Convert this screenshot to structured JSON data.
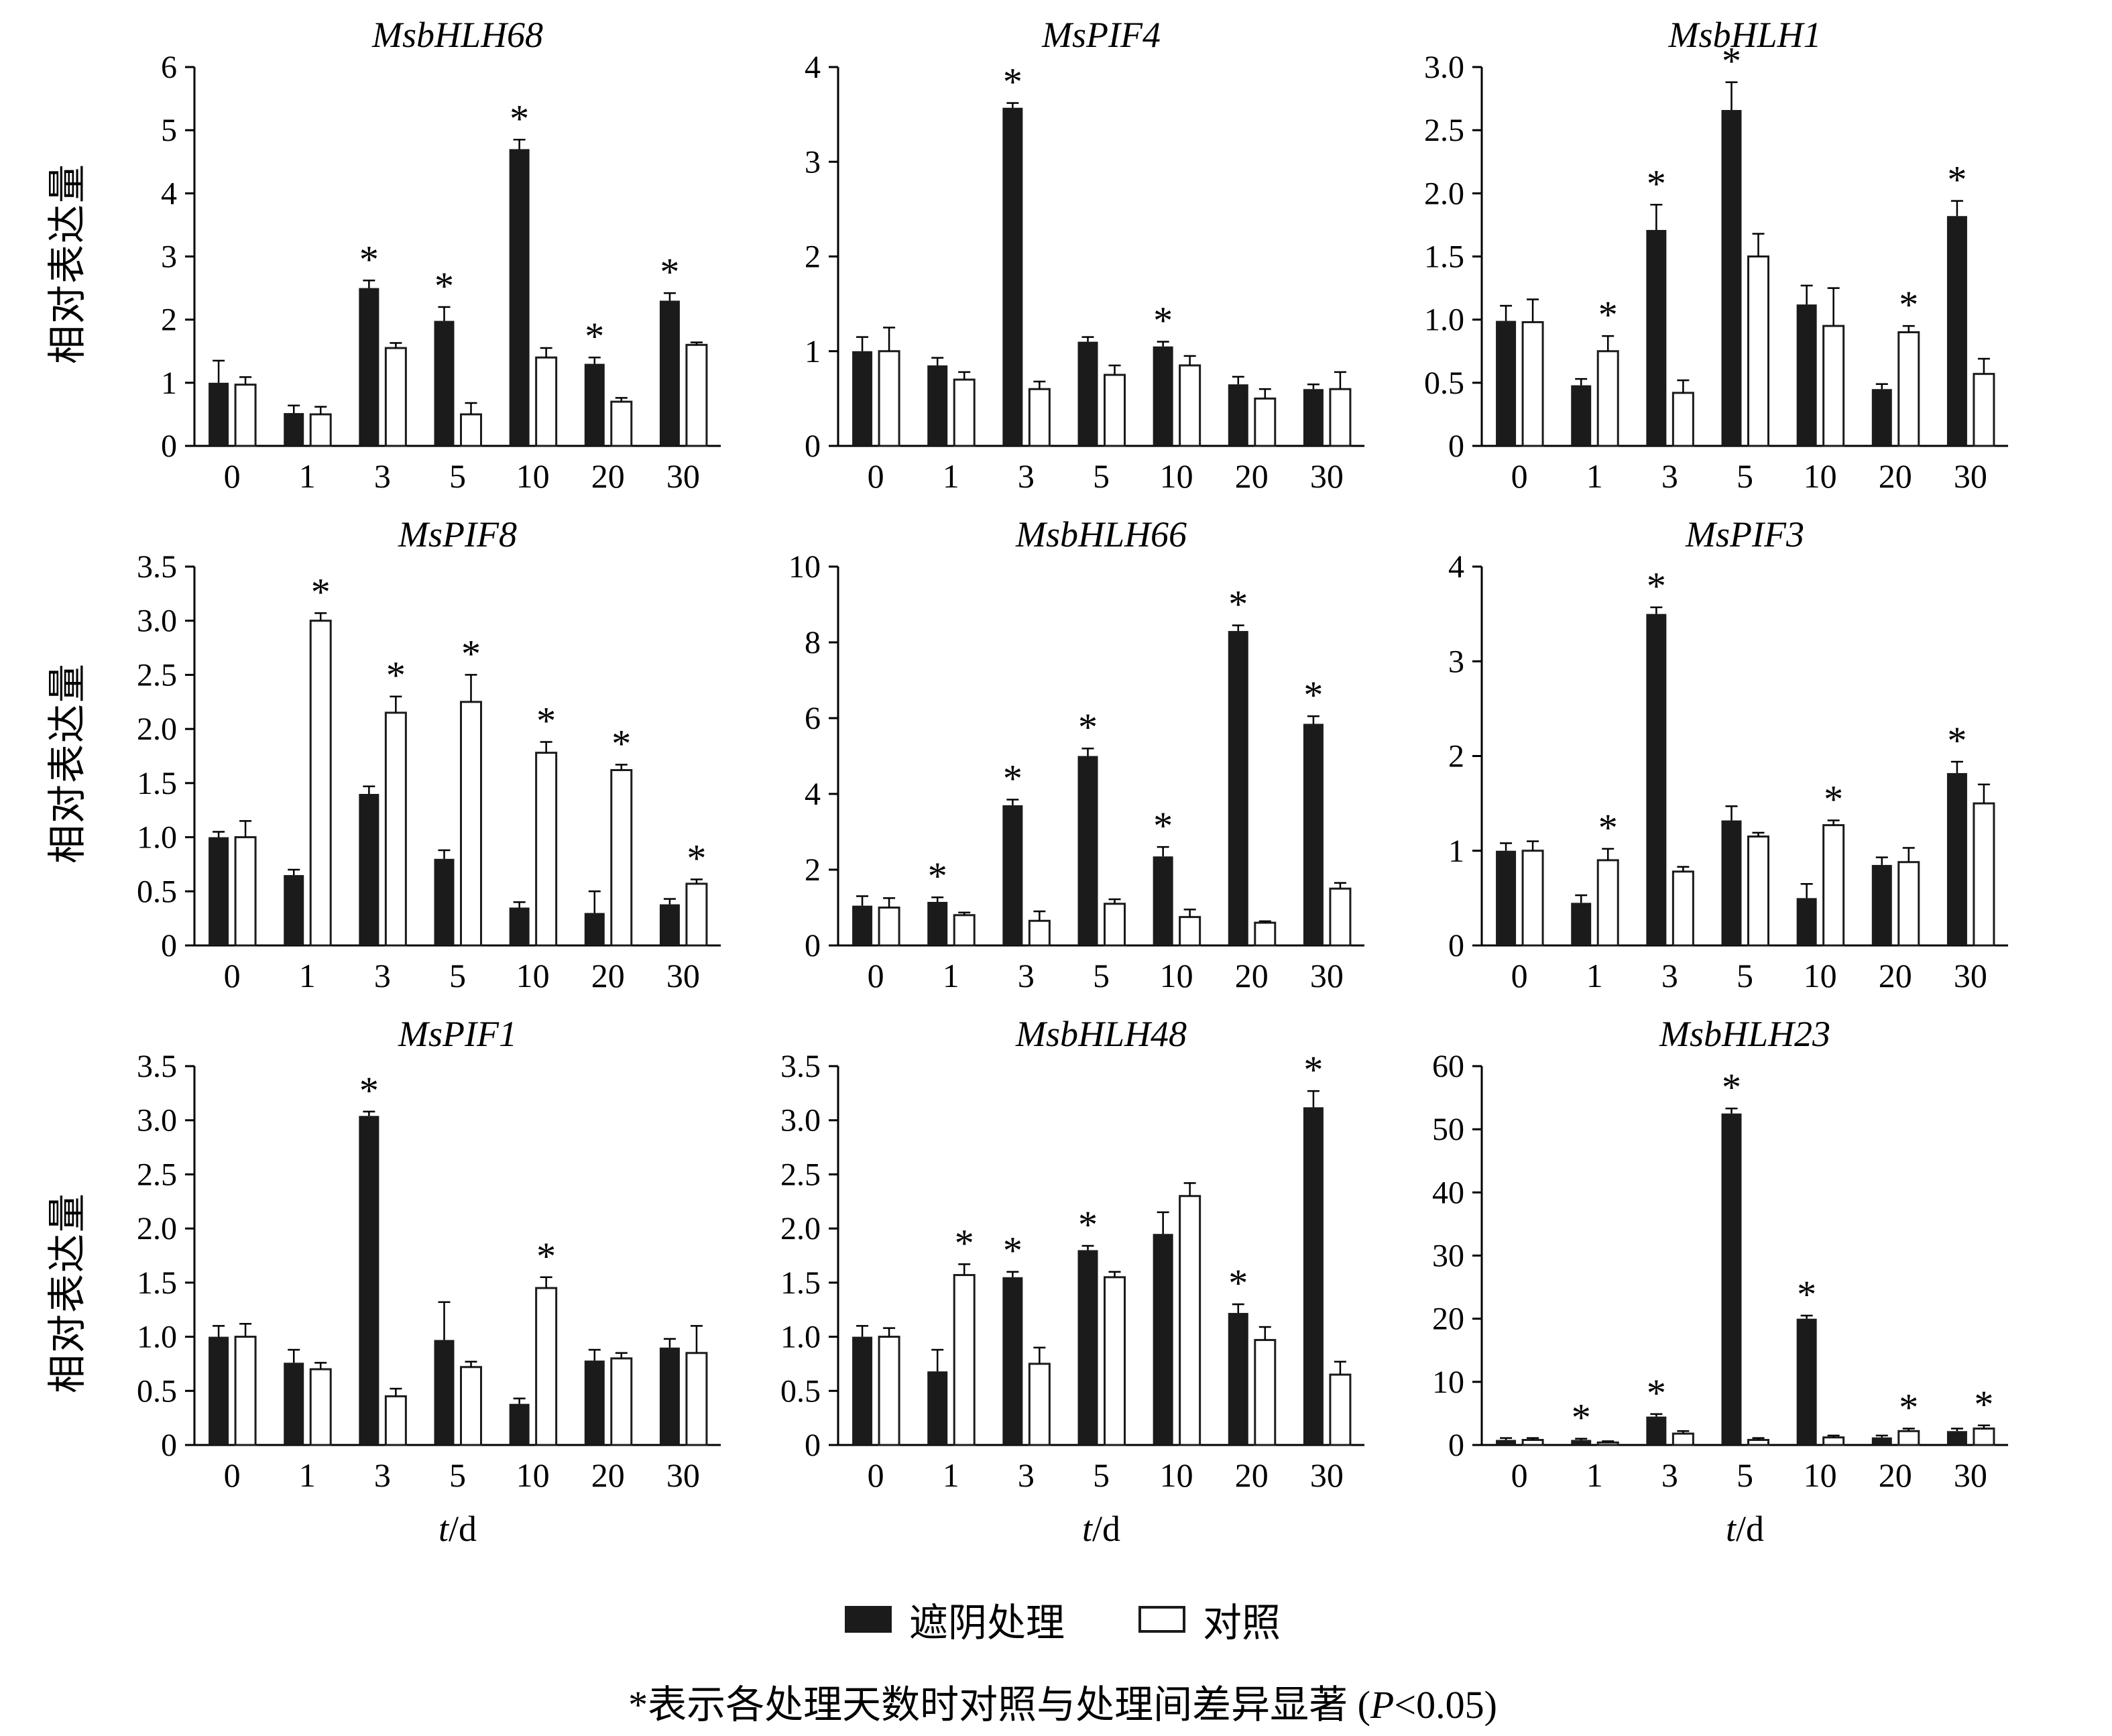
{
  "figure": {
    "ylabel": "相对表达量",
    "xlabel_italic": "t",
    "xlabel_suffix": "/d",
    "legend": [
      {
        "label": "遮阴处理",
        "fill": "#1b1b1b"
      },
      {
        "label": "对照",
        "fill": "#ffffff"
      }
    ],
    "footnote_pre": "*表示各处理天数时对照与处理间差异显著 (",
    "footnote_p": "P",
    "footnote_post": "<0.05)",
    "bar_color_shade": "#1b1b1b",
    "bar_color_control": "#ffffff",
    "axis_color": "#000000"
  },
  "chart_data": [
    {
      "type": "bar",
      "title": "MsbHLH68",
      "categories": [
        "0",
        "1",
        "3",
        "5",
        "10",
        "20",
        "30"
      ],
      "ylim": [
        0,
        6
      ],
      "yticks": [
        "0",
        "1",
        "2",
        "3",
        "4",
        "5",
        "6"
      ],
      "series": [
        {
          "name": "遮阴处理",
          "values": [
            1.0,
            0.52,
            2.5,
            1.98,
            4.7,
            1.3,
            2.3
          ],
          "errors": [
            0.35,
            0.12,
            0.12,
            0.22,
            0.15,
            0.1,
            0.12
          ]
        },
        {
          "name": "对照",
          "values": [
            0.97,
            0.5,
            1.55,
            0.5,
            1.4,
            0.7,
            1.6
          ],
          "errors": [
            0.12,
            0.12,
            0.08,
            0.18,
            0.15,
            0.06,
            0.04
          ]
        }
      ],
      "sig": [
        null,
        null,
        "shade",
        "shade",
        "shade",
        "shade",
        "shade"
      ]
    },
    {
      "type": "bar",
      "title": "MsPIF4",
      "categories": [
        "0",
        "1",
        "3",
        "5",
        "10",
        "20",
        "30"
      ],
      "ylim": [
        0,
        4
      ],
      "yticks": [
        "0",
        "1",
        "2",
        "3",
        "4"
      ],
      "series": [
        {
          "name": "遮阴处理",
          "values": [
            1.0,
            0.85,
            3.57,
            1.1,
            1.05,
            0.65,
            0.6
          ],
          "errors": [
            0.15,
            0.08,
            0.05,
            0.05,
            0.05,
            0.08,
            0.05
          ]
        },
        {
          "name": "对照",
          "values": [
            1.0,
            0.7,
            0.6,
            0.75,
            0.85,
            0.5,
            0.6
          ],
          "errors": [
            0.25,
            0.08,
            0.08,
            0.1,
            0.1,
            0.1,
            0.18
          ]
        }
      ],
      "sig": [
        null,
        null,
        "shade",
        null,
        "shade",
        null,
        null
      ]
    },
    {
      "type": "bar",
      "title": "MsbHLH1",
      "categories": [
        "0",
        "1",
        "3",
        "5",
        "10",
        "20",
        "30"
      ],
      "ylim": [
        0,
        3
      ],
      "yticks": [
        "0",
        "0.5",
        "1.0",
        "1.5",
        "2.0",
        "2.5",
        "3.0"
      ],
      "series": [
        {
          "name": "遮阴处理",
          "values": [
            0.99,
            0.48,
            1.71,
            2.66,
            1.12,
            0.45,
            1.82
          ],
          "errors": [
            0.12,
            0.05,
            0.2,
            0.22,
            0.15,
            0.04,
            0.12
          ]
        },
        {
          "name": "对照",
          "values": [
            0.98,
            0.75,
            0.42,
            1.5,
            0.95,
            0.9,
            0.57
          ],
          "errors": [
            0.18,
            0.12,
            0.1,
            0.18,
            0.3,
            0.05,
            0.12
          ]
        }
      ],
      "sig": [
        null,
        "control",
        "shade",
        "shade",
        null,
        "control",
        "shade"
      ]
    },
    {
      "type": "bar",
      "title": "MsPIF8",
      "categories": [
        "0",
        "1",
        "3",
        "5",
        "10",
        "20",
        "30"
      ],
      "ylim": [
        0,
        3.5
      ],
      "yticks": [
        "0",
        "0.5",
        "1.0",
        "1.5",
        "2.0",
        "2.5",
        "3.0",
        "3.5"
      ],
      "series": [
        {
          "name": "遮阴处理",
          "values": [
            1.0,
            0.65,
            1.4,
            0.8,
            0.35,
            0.3,
            0.38
          ],
          "errors": [
            0.05,
            0.05,
            0.07,
            0.08,
            0.05,
            0.2,
            0.05
          ]
        },
        {
          "name": "对照",
          "values": [
            1.0,
            3.0,
            2.15,
            2.25,
            1.78,
            1.62,
            0.57
          ],
          "errors": [
            0.15,
            0.07,
            0.15,
            0.25,
            0.1,
            0.05,
            0.04
          ]
        }
      ],
      "sig": [
        null,
        "control",
        "control",
        "control",
        "control",
        "control",
        "control"
      ]
    },
    {
      "type": "bar",
      "title": "MsbHLH66",
      "categories": [
        "0",
        "1",
        "3",
        "5",
        "10",
        "20",
        "30"
      ],
      "ylim": [
        0,
        10
      ],
      "yticks": [
        "0",
        "2",
        "4",
        "6",
        "8",
        "10"
      ],
      "series": [
        {
          "name": "遮阴处理",
          "values": [
            1.05,
            1.15,
            3.7,
            5.0,
            2.35,
            8.3,
            5.85
          ],
          "errors": [
            0.25,
            0.12,
            0.15,
            0.2,
            0.25,
            0.15,
            0.2
          ]
        },
        {
          "name": "对照",
          "values": [
            1.0,
            0.8,
            0.65,
            1.1,
            0.75,
            0.6,
            1.5
          ],
          "errors": [
            0.25,
            0.07,
            0.25,
            0.12,
            0.2,
            0.04,
            0.15
          ]
        }
      ],
      "sig": [
        null,
        "shade",
        "shade",
        "shade",
        "shade",
        "shade",
        "shade"
      ]
    },
    {
      "type": "bar",
      "title": "MsPIF3",
      "categories": [
        "0",
        "1",
        "3",
        "5",
        "10",
        "20",
        "30"
      ],
      "ylim": [
        0,
        4
      ],
      "yticks": [
        "0",
        "1",
        "2",
        "3",
        "4"
      ],
      "series": [
        {
          "name": "遮阴处理",
          "values": [
            1.0,
            0.45,
            3.5,
            1.32,
            0.5,
            0.85,
            1.82
          ],
          "errors": [
            0.08,
            0.08,
            0.07,
            0.15,
            0.15,
            0.08,
            0.12
          ]
        },
        {
          "name": "对照",
          "values": [
            1.0,
            0.9,
            0.78,
            1.15,
            1.27,
            0.88,
            1.5
          ],
          "errors": [
            0.1,
            0.12,
            0.05,
            0.04,
            0.05,
            0.15,
            0.2
          ]
        }
      ],
      "sig": [
        null,
        "control",
        "shade",
        null,
        "control",
        null,
        "shade"
      ]
    },
    {
      "type": "bar",
      "title": "MsPIF1",
      "categories": [
        "0",
        "1",
        "3",
        "5",
        "10",
        "20",
        "30"
      ],
      "ylim": [
        0,
        3.5
      ],
      "yticks": [
        "0",
        "0.5",
        "1.0",
        "1.5",
        "2.0",
        "2.5",
        "3.0",
        "3.5"
      ],
      "series": [
        {
          "name": "遮阴处理",
          "values": [
            1.0,
            0.76,
            3.04,
            0.97,
            0.38,
            0.78,
            0.9
          ],
          "errors": [
            0.1,
            0.12,
            0.04,
            0.35,
            0.05,
            0.1,
            0.08
          ]
        },
        {
          "name": "对照",
          "values": [
            1.0,
            0.7,
            0.45,
            0.72,
            1.45,
            0.8,
            0.85
          ],
          "errors": [
            0.12,
            0.06,
            0.07,
            0.05,
            0.1,
            0.05,
            0.25
          ]
        }
      ],
      "sig": [
        null,
        null,
        "shade",
        null,
        "control",
        null,
        null
      ]
    },
    {
      "type": "bar",
      "title": "MsbHLH48",
      "categories": [
        "0",
        "1",
        "3",
        "5",
        "10",
        "20",
        "30"
      ],
      "ylim": [
        0,
        3.5
      ],
      "yticks": [
        "0",
        "0.5",
        "1.0",
        "1.5",
        "2.0",
        "2.5",
        "3.0",
        "3.5"
      ],
      "series": [
        {
          "name": "遮阴处理",
          "values": [
            1.0,
            0.68,
            1.55,
            1.8,
            1.95,
            1.22,
            3.12
          ],
          "errors": [
            0.1,
            0.2,
            0.05,
            0.04,
            0.2,
            0.08,
            0.15
          ]
        },
        {
          "name": "对照",
          "values": [
            1.0,
            1.57,
            0.75,
            1.55,
            2.3,
            0.97,
            0.65
          ],
          "errors": [
            0.08,
            0.1,
            0.15,
            0.05,
            0.12,
            0.12,
            0.12
          ]
        }
      ],
      "sig": [
        null,
        "control",
        "shade",
        "shade",
        null,
        "shade",
        "shade"
      ]
    },
    {
      "type": "bar",
      "title": "MsbHLH23",
      "categories": [
        "0",
        "1",
        "3",
        "5",
        "10",
        "20",
        "30"
      ],
      "ylim": [
        0,
        60
      ],
      "yticks": [
        "0",
        "10",
        "20",
        "30",
        "40",
        "50",
        "60"
      ],
      "series": [
        {
          "name": "遮阴处理",
          "values": [
            0.8,
            0.8,
            4.5,
            52.5,
            20.0,
            1.2,
            2.2
          ],
          "errors": [
            0.3,
            0.2,
            0.4,
            0.8,
            0.5,
            0.3,
            0.4
          ]
        },
        {
          "name": "对照",
          "values": [
            0.8,
            0.4,
            1.8,
            0.8,
            1.2,
            2.2,
            2.6
          ],
          "errors": [
            0.3,
            0.2,
            0.4,
            0.3,
            0.3,
            0.4,
            0.5
          ]
        }
      ],
      "sig": [
        null,
        "shade",
        "shade",
        "shade",
        "shade",
        "control",
        "control"
      ]
    }
  ]
}
